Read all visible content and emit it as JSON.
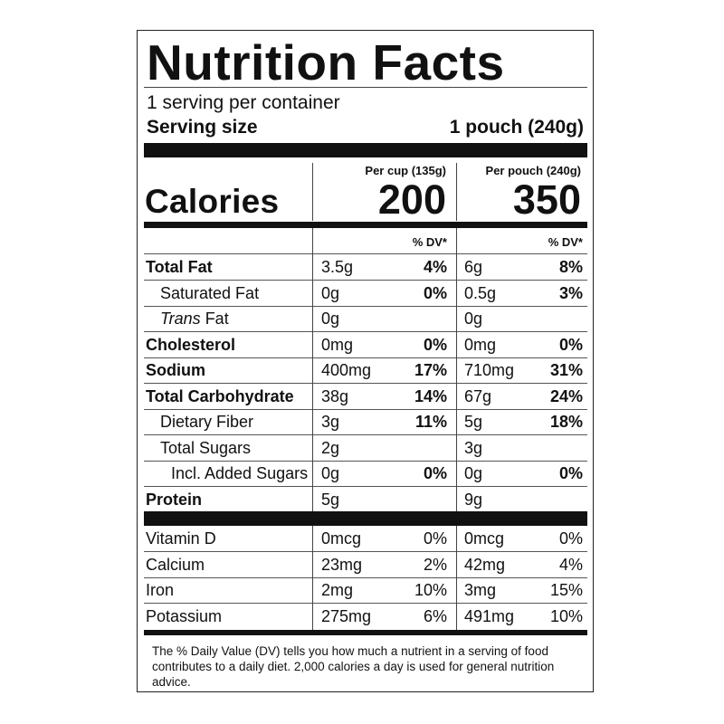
{
  "title": "Nutrition Facts",
  "servings_per_container": "1 serving per container",
  "serving_size": {
    "label": "Serving size",
    "value": "1 pouch (240g)"
  },
  "columns": {
    "col1": "Per cup (135g)",
    "col2": "Per pouch (240g)"
  },
  "calories": {
    "label": "Calories",
    "col1": "200",
    "col2": "350"
  },
  "dv_header": "% DV*",
  "nutrients": [
    {
      "name": "Total Fat",
      "bold": true,
      "indent": 0,
      "a1": "3.5g",
      "p1": "4%",
      "a2": "6g",
      "p2": "8%"
    },
    {
      "name": "Saturated Fat",
      "bold": false,
      "indent": 1,
      "a1": "0g",
      "p1": "0%",
      "a2": "0.5g",
      "p2": "3%"
    },
    {
      "name_italic": "Trans",
      "name": " Fat",
      "bold": false,
      "indent": 1,
      "a1": "0g",
      "p1": "",
      "a2": "0g",
      "p2": ""
    },
    {
      "name": "Cholesterol",
      "bold": true,
      "indent": 0,
      "a1": "0mg",
      "p1": "0%",
      "a2": "0mg",
      "p2": "0%"
    },
    {
      "name": "Sodium",
      "bold": true,
      "indent": 0,
      "a1": "400mg",
      "p1": "17%",
      "a2": "710mg",
      "p2": "31%"
    },
    {
      "name": "Total Carbohydrate",
      "bold": true,
      "indent": 0,
      "a1": "38g",
      "p1": "14%",
      "a2": "67g",
      "p2": "24%"
    },
    {
      "name": "Dietary Fiber",
      "bold": false,
      "indent": 1,
      "a1": "3g",
      "p1": "11%",
      "a2": "5g",
      "p2": "18%"
    },
    {
      "name": "Total Sugars",
      "bold": false,
      "indent": 1,
      "a1": "2g",
      "p1": "",
      "a2": "3g",
      "p2": ""
    },
    {
      "name": "Incl. Added Sugars",
      "bold": false,
      "indent": 2,
      "a1": "0g",
      "p1": "0%",
      "a2": "0g",
      "p2": "0%"
    },
    {
      "name": "Protein",
      "bold": true,
      "indent": 0,
      "a1": "5g",
      "p1": "",
      "a2": "9g",
      "p2": ""
    }
  ],
  "vitamins": [
    {
      "name": "Vitamin D",
      "a1": "0mcg",
      "p1": "0%",
      "a2": "0mcg",
      "p2": "0%"
    },
    {
      "name": "Calcium",
      "a1": "23mg",
      "p1": "2%",
      "a2": "42mg",
      "p2": "4%"
    },
    {
      "name": "Iron",
      "a1": "2mg",
      "p1": "10%",
      "a2": "3mg",
      "p2": "15%"
    },
    {
      "name": "Potassium",
      "a1": "275mg",
      "p1": "6%",
      "a2": "491mg",
      "p2": "10%"
    }
  ],
  "footnote": "The % Daily Value (DV) tells you how much a nutrient in a serving of food contributes to a daily diet. 2,000 calories a day is used for general nutrition advice."
}
